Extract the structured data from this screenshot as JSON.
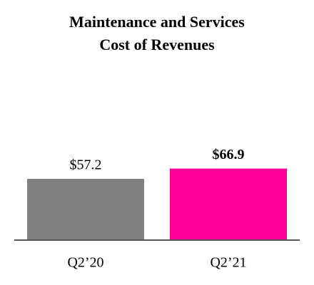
{
  "chart_data": {
    "type": "bar",
    "title": [
      "Maintenance and Services",
      "Cost of Revenues"
    ],
    "categories": [
      "Q2’20",
      "Q2’21"
    ],
    "values": [
      57.2,
      66.9
    ],
    "value_labels": [
      "$57.2",
      "$66.9"
    ],
    "colors": [
      "#808080",
      "#ff0099"
    ],
    "value_label_bold": [
      false,
      true
    ]
  }
}
